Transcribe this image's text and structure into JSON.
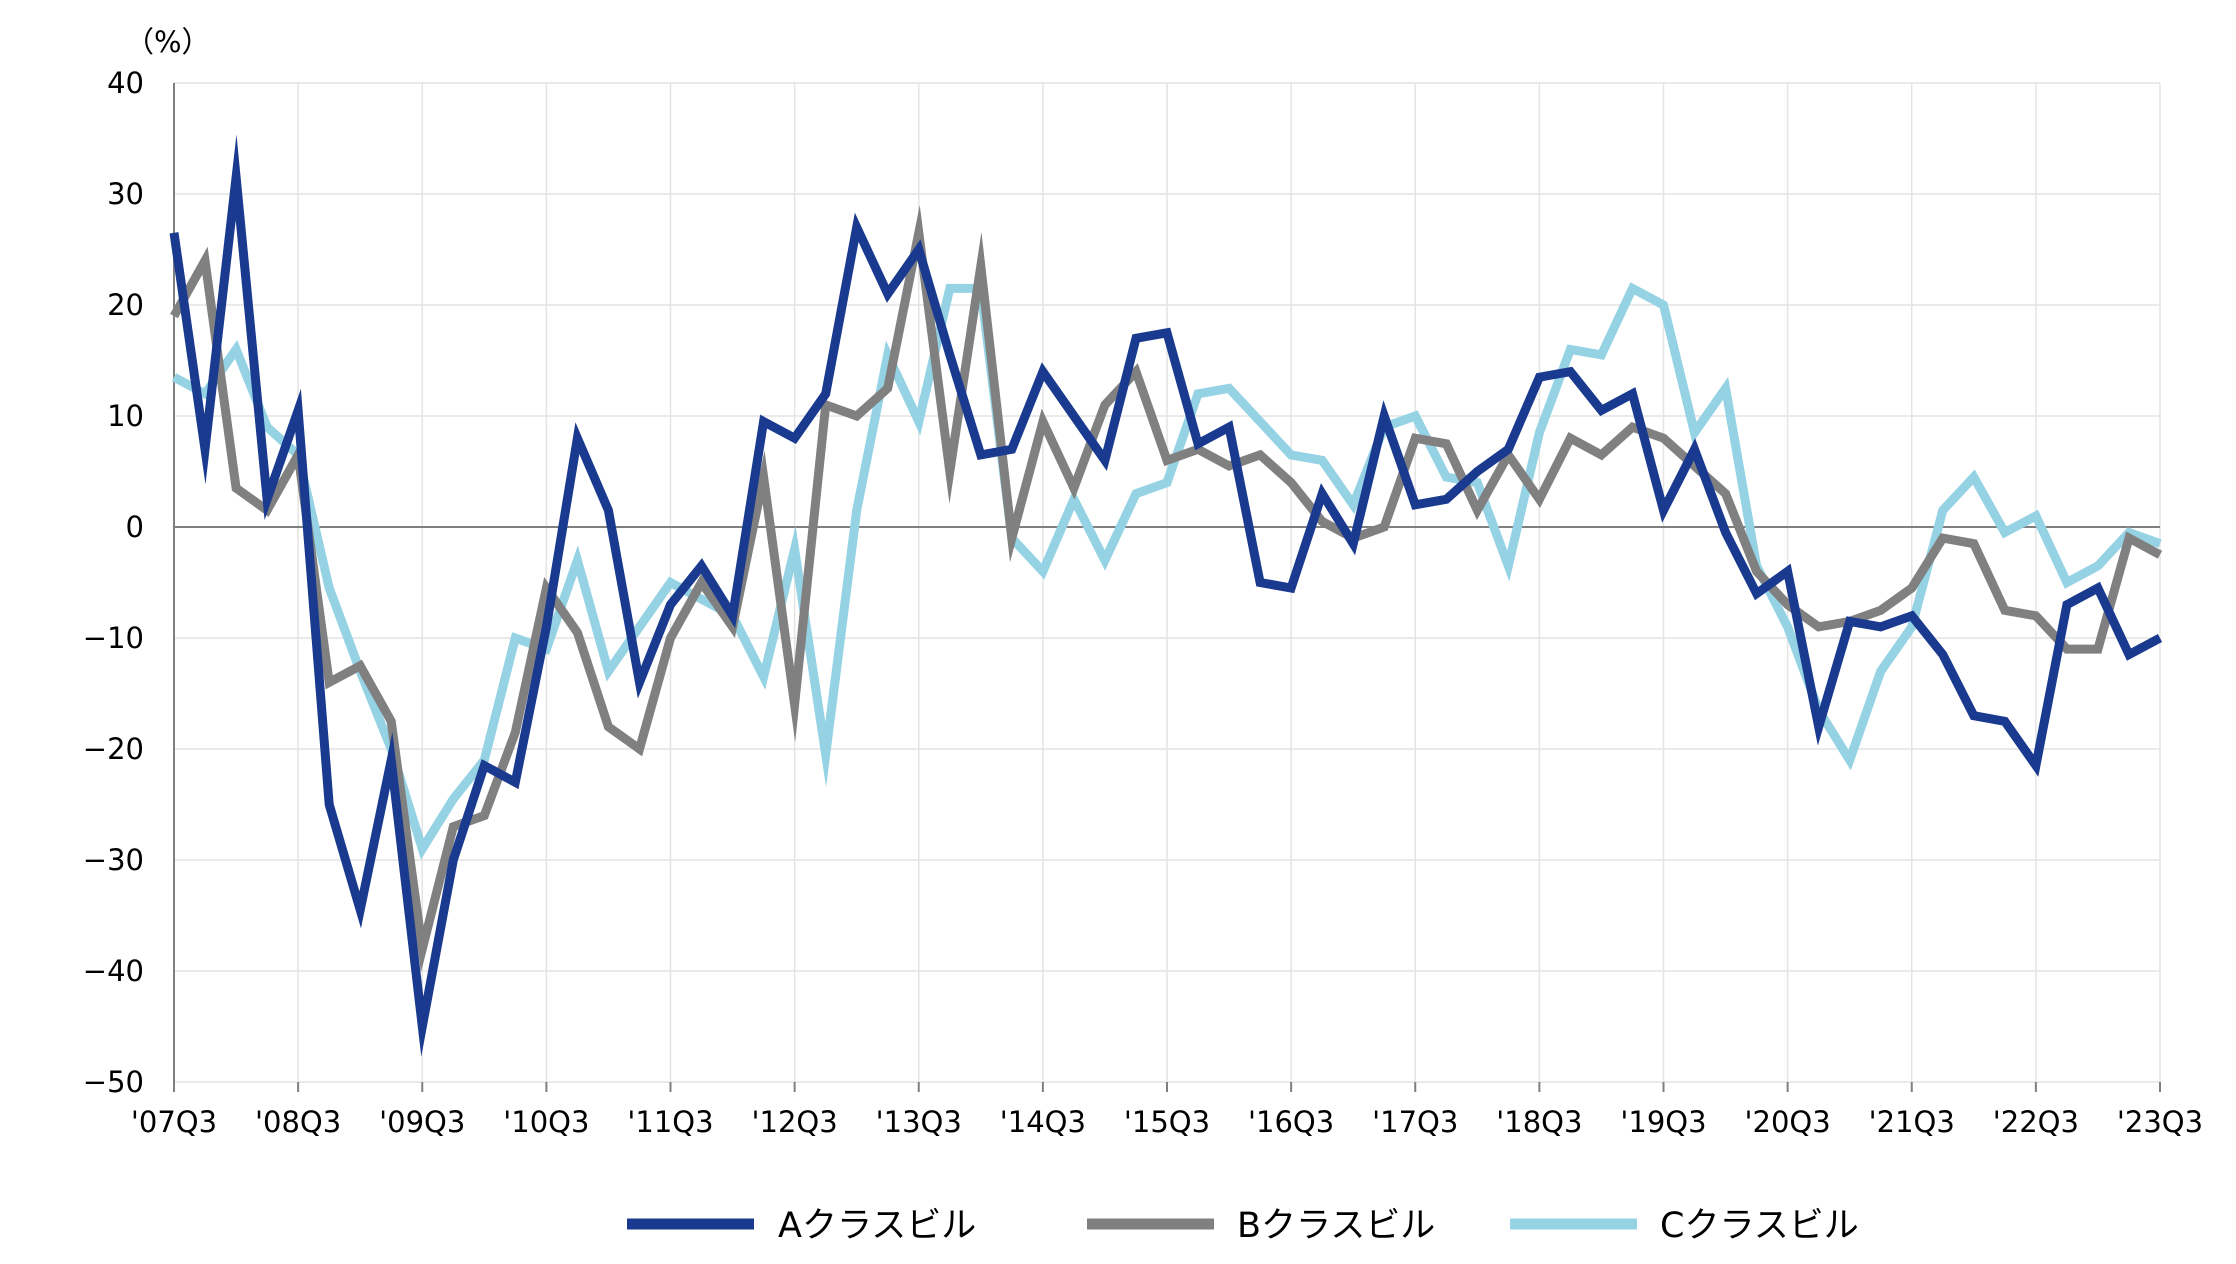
{
  "chart_data": {
    "type": "line",
    "y_unit": "（%）",
    "ylim": [
      -50,
      40
    ],
    "y_ticks": [
      40,
      30,
      20,
      10,
      0,
      -10,
      -20,
      -30,
      -40,
      -50
    ],
    "y_tick_labels": [
      "40",
      "30",
      "20",
      "10",
      "0",
      "−10",
      "−20",
      "−30",
      "−40",
      "−50"
    ],
    "x_tick_labels": [
      "'07Q3",
      "'08Q3",
      "'09Q3",
      "'10Q3",
      "'11Q3",
      "'12Q3",
      "'13Q3",
      "'14Q3",
      "'15Q3",
      "'16Q3",
      "'17Q3",
      "'18Q3",
      "'19Q3",
      "'20Q3",
      "'21Q3",
      "'22Q3",
      "'23Q3"
    ],
    "points_per_year": 4,
    "grid": true,
    "legend_position": "bottom",
    "series": [
      {
        "name": "Aクラスビル",
        "color": "#1a3a8f",
        "values": [
          26.5,
          7,
          31.5,
          2.5,
          10.5,
          -25,
          -34.5,
          -21,
          -45,
          -30,
          -21.5,
          -23,
          -9,
          8,
          1.5,
          -14,
          -7,
          -3.5,
          -8,
          9.5,
          8,
          12,
          27,
          21,
          25,
          15.5,
          6.5,
          7,
          14,
          10,
          6,
          17,
          17.5,
          7.5,
          9,
          -5,
          -5.5,
          3,
          -1.5,
          10,
          2,
          2.5,
          5,
          7,
          13.5,
          14,
          10.5,
          12,
          1.5,
          7,
          -0.5,
          -6,
          -4,
          -18,
          -8.5,
          -9,
          -8,
          -11.5,
          -17,
          -17.5,
          -21.5,
          -7,
          -5.5,
          -11.5,
          -10
        ]
      },
      {
        "name": "Bクラスビル",
        "color": "#808080",
        "values": [
          19,
          24,
          3.5,
          1.5,
          6.5,
          -14,
          -12.5,
          -17.5,
          -38,
          -27,
          -26,
          -18.5,
          -5.5,
          -9.5,
          -18,
          -20,
          -10,
          -5,
          -9,
          4.5,
          -16,
          11,
          10,
          12.5,
          26.5,
          5,
          23.5,
          -1,
          9.5,
          3.5,
          11,
          14,
          6,
          7,
          5.5,
          6.5,
          4,
          0.5,
          -1,
          0,
          8,
          7.5,
          1.5,
          6.5,
          2.5,
          8,
          6.5,
          9,
          8,
          5.5,
          3,
          -4,
          -7,
          -9,
          -8.5,
          -7.5,
          -5.5,
          -1,
          -1.5,
          -7.5,
          -8,
          -11,
          -11,
          -1,
          -2.5
        ]
      },
      {
        "name": "Cクラスビル",
        "color": "#94d2e4",
        "values": [
          13.5,
          12,
          16,
          9,
          6.5,
          -5.5,
          -13,
          -20,
          -29,
          -24.5,
          -21,
          -10,
          -11,
          -3,
          -13,
          -9,
          -5,
          -6.5,
          -8,
          -13.5,
          -2,
          -20.5,
          1.5,
          15.5,
          9.5,
          21.5,
          21.5,
          -1,
          -4,
          2.5,
          -3,
          3,
          4,
          12,
          12.5,
          9.5,
          6.5,
          6,
          2,
          9,
          10,
          4.5,
          4,
          -3.5,
          8.5,
          16,
          15.5,
          21.5,
          20,
          8.5,
          12.5,
          -3.5,
          -9,
          -16.5,
          -21,
          -13,
          -9,
          1.5,
          4.5,
          -0.5,
          1,
          -5,
          -3.5,
          -0.5,
          -1.5
        ]
      }
    ]
  }
}
